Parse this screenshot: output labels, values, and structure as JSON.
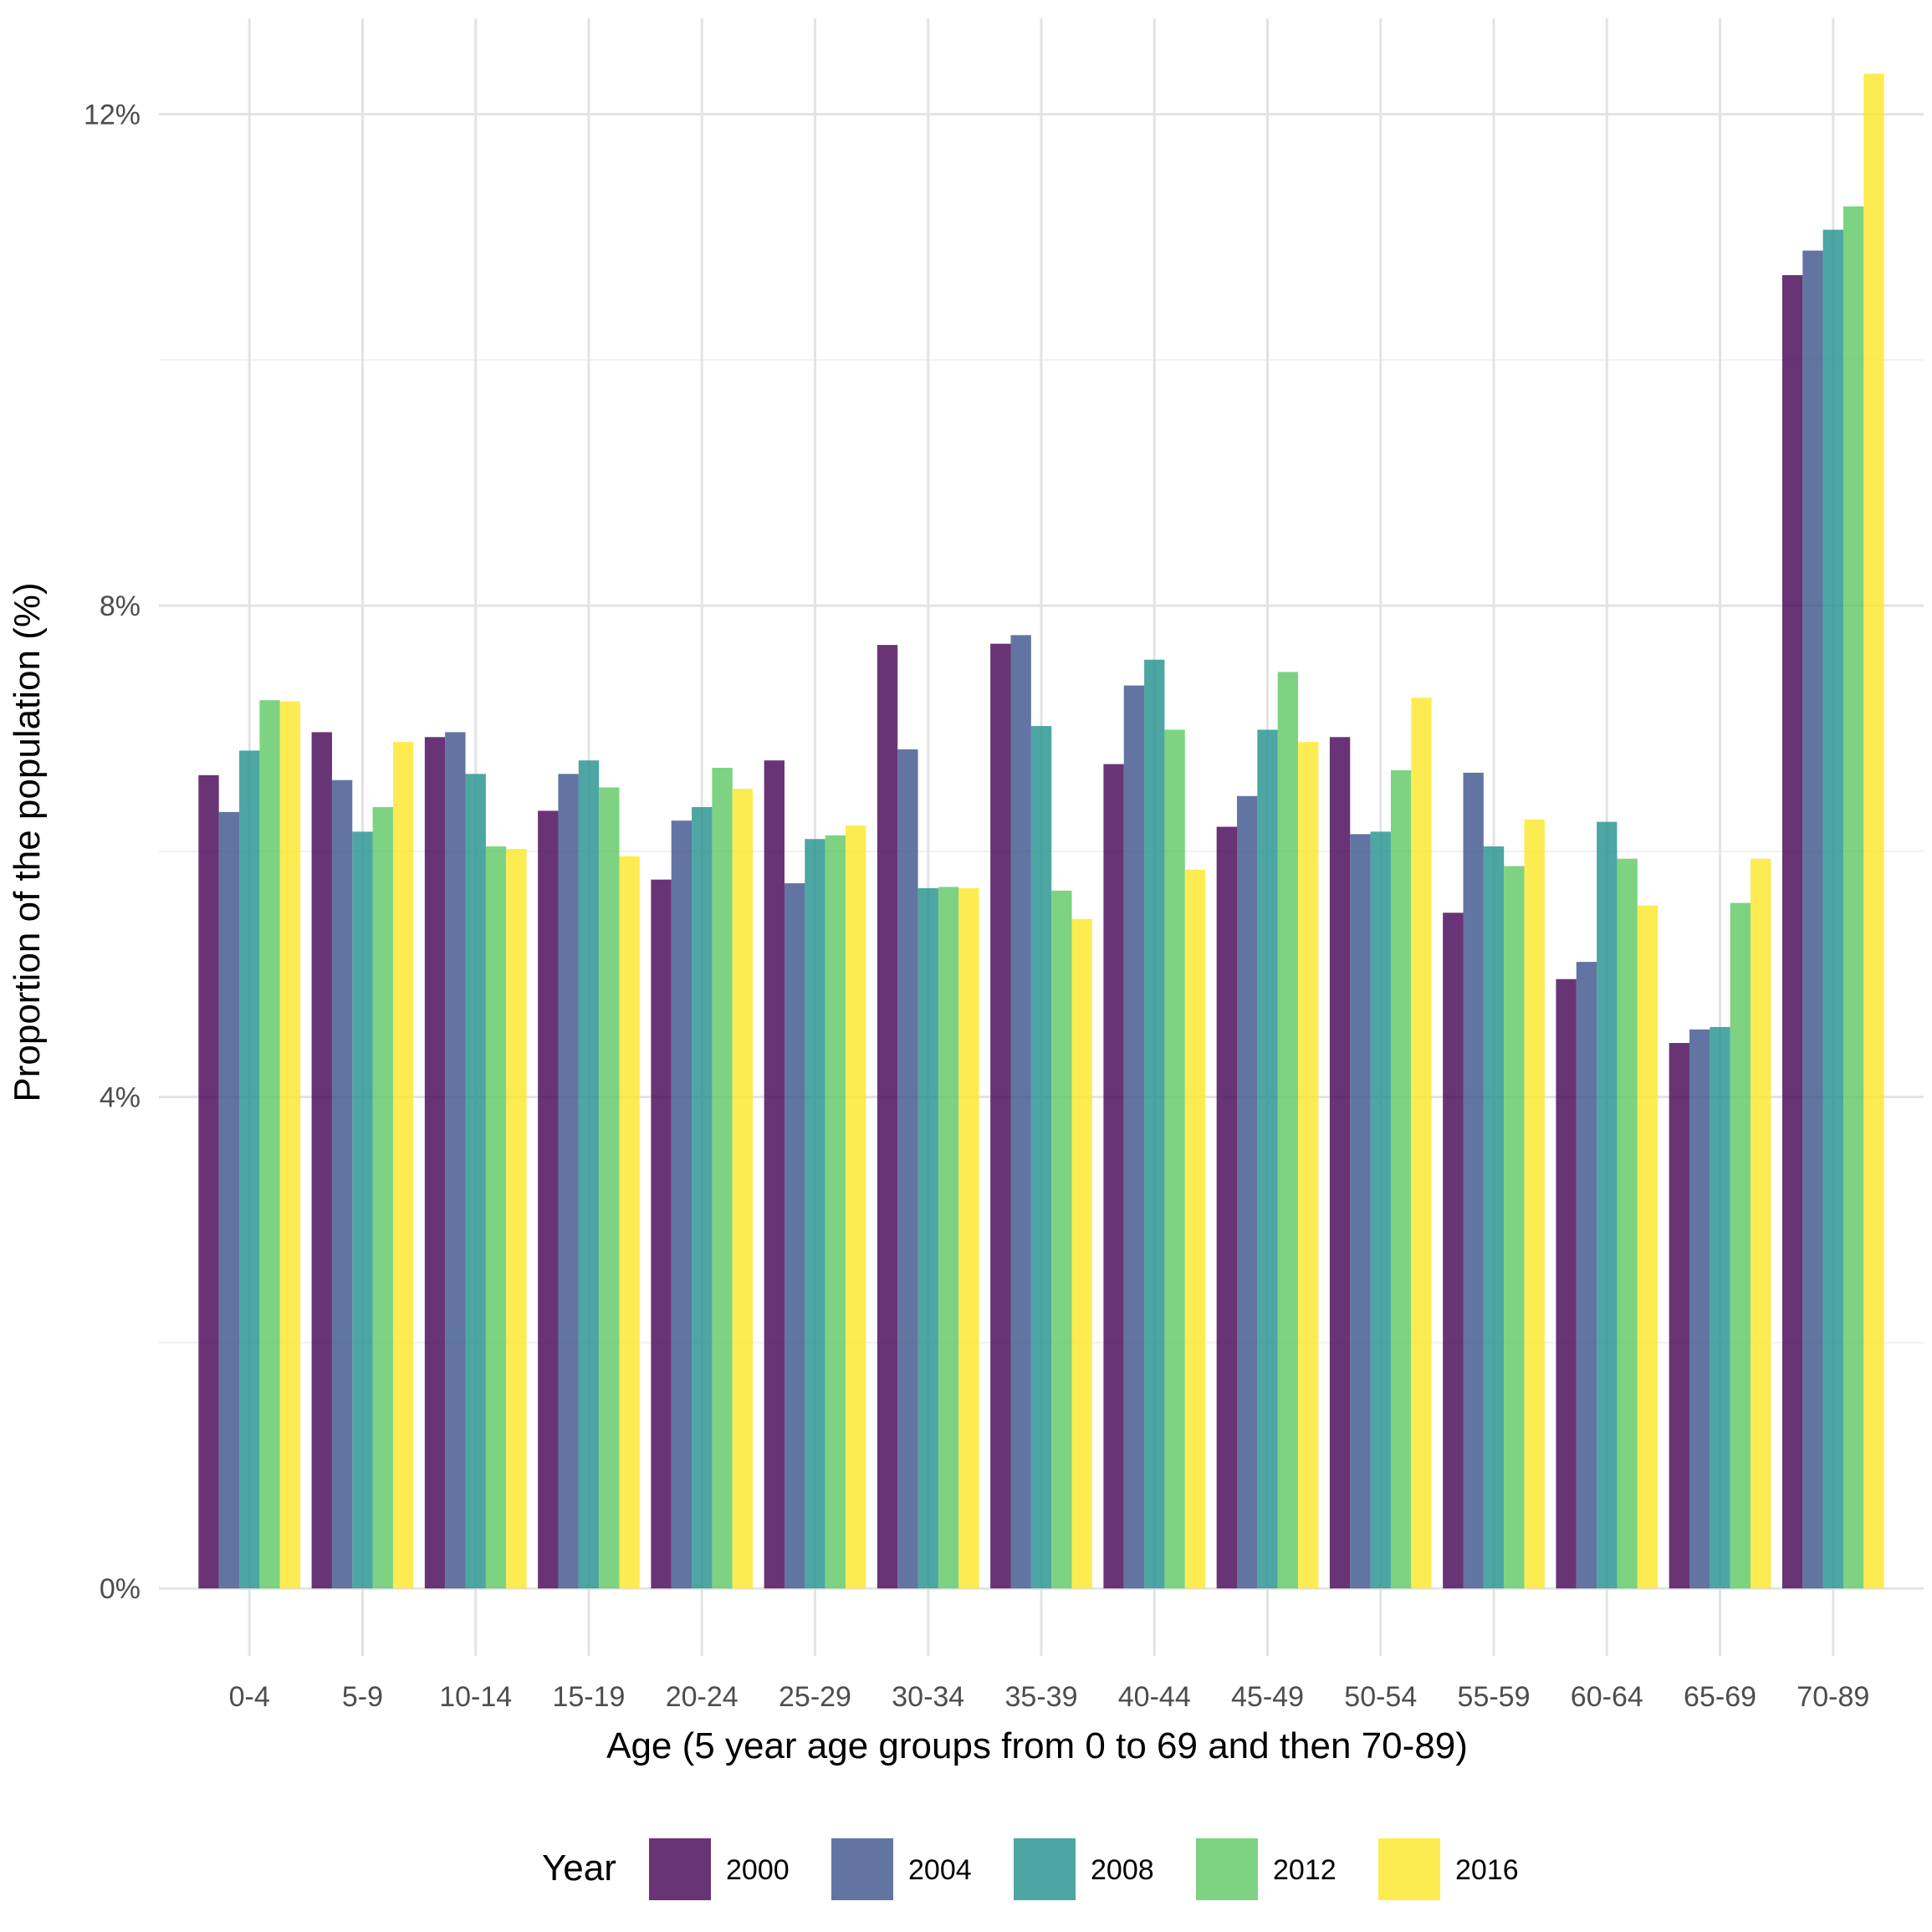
{
  "chart_data": {
    "type": "bar",
    "xlabel": "Age (5 year age groups from 0 to 69 and then 70-89)",
    "ylabel": "Proportion of the population (%)",
    "categories": [
      "0-4",
      "5-9",
      "10-14",
      "15-19",
      "20-24",
      "25-29",
      "30-34",
      "35-39",
      "40-44",
      "45-49",
      "50-54",
      "55-59",
      "60-64",
      "65-69",
      "70-89"
    ],
    "ylim": [
      -0.55,
      12.78
    ],
    "yticks": [
      0,
      4,
      8,
      12
    ],
    "ytick_labels": [
      "0%",
      "4%",
      "8%",
      "12%"
    ],
    "grid": true,
    "legend": {
      "title": "Year",
      "placement": "bottom"
    },
    "series": [
      {
        "name": "2000",
        "color": "#440154",
        "values": [
          6.62,
          6.97,
          6.93,
          6.33,
          5.77,
          6.74,
          7.68,
          7.69,
          6.71,
          6.2,
          6.93,
          5.5,
          4.96,
          4.44,
          10.69
        ]
      },
      {
        "name": "2004",
        "color": "#3B528B",
        "values": [
          6.32,
          6.58,
          6.97,
          6.63,
          6.25,
          5.74,
          6.83,
          7.76,
          7.35,
          6.45,
          6.14,
          6.64,
          5.1,
          4.55,
          10.89
        ]
      },
      {
        "name": "2008",
        "color": "#21908C",
        "values": [
          6.82,
          6.16,
          6.63,
          6.74,
          6.36,
          6.1,
          5.7,
          7.02,
          7.56,
          6.99,
          6.16,
          6.04,
          6.24,
          4.57,
          11.06
        ]
      },
      {
        "name": "2012",
        "color": "#5DC863",
        "values": [
          7.23,
          6.36,
          6.04,
          6.52,
          6.68,
          6.13,
          5.71,
          5.68,
          6.99,
          7.46,
          6.66,
          5.88,
          5.94,
          5.58,
          11.25
        ]
      },
      {
        "name": "2016",
        "color": "#FDE725",
        "values": [
          7.22,
          6.89,
          6.02,
          5.96,
          6.51,
          6.21,
          5.7,
          5.45,
          5.85,
          6.89,
          7.25,
          6.26,
          5.56,
          5.94,
          12.33
        ]
      }
    ]
  }
}
